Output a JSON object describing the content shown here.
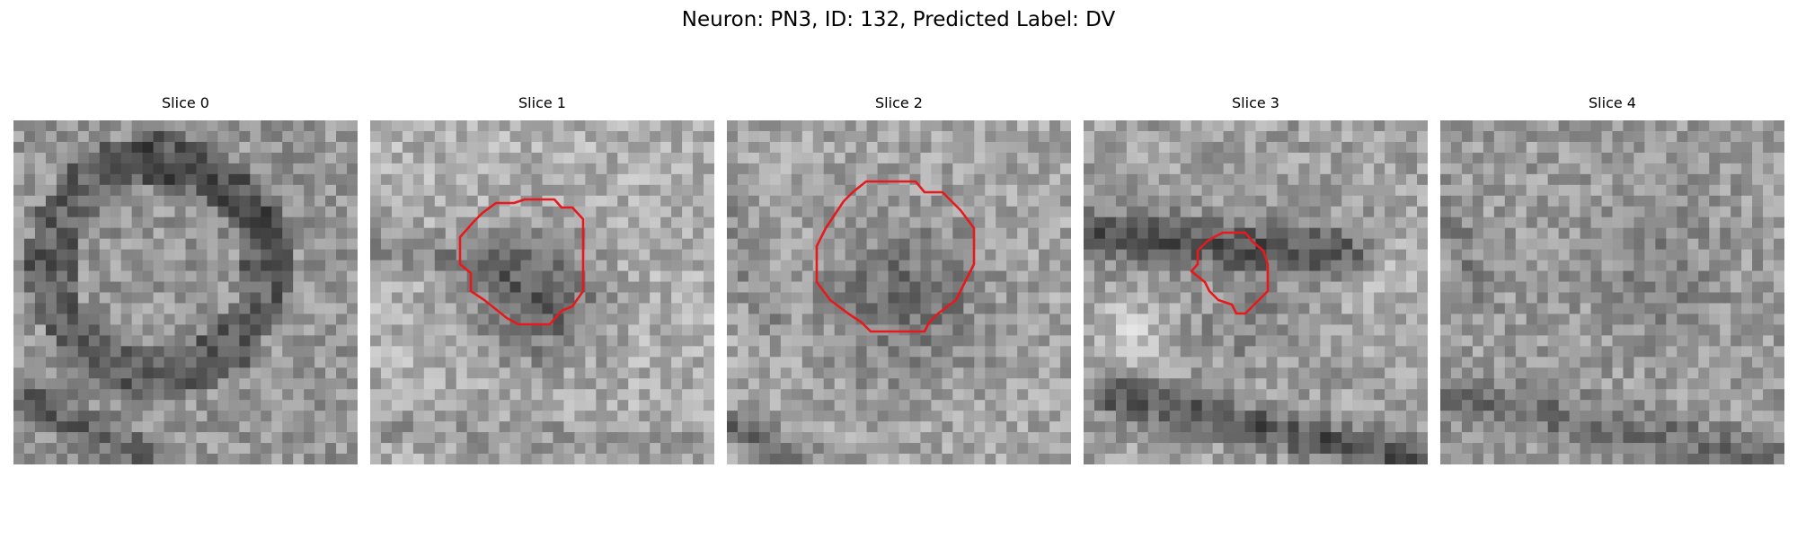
{
  "figure": {
    "title": "Neuron: PN3, ID: 132, Predicted Label: DV"
  },
  "colors": {
    "contour": "#e8191c",
    "background": "#ffffff"
  },
  "slices": [
    {
      "title": "Slice 0",
      "has_contour": false,
      "seed": 11,
      "mean_intensity": 150,
      "feature": "ring-and-dark-diagonal"
    },
    {
      "title": "Slice 1",
      "has_contour": true,
      "seed": 23,
      "mean_intensity": 175,
      "feature": "dark-blob-in-contour"
    },
    {
      "title": "Slice 2",
      "has_contour": true,
      "seed": 37,
      "mean_intensity": 165,
      "feature": "mid-gray-disc-in-contour"
    },
    {
      "title": "Slice 3",
      "has_contour": true,
      "seed": 41,
      "mean_intensity": 160,
      "feature": "dark-bands-small-contour"
    },
    {
      "title": "Slice 4",
      "has_contour": false,
      "seed": 53,
      "mean_intensity": 155,
      "feature": "faint-dark-diagonal"
    }
  ]
}
